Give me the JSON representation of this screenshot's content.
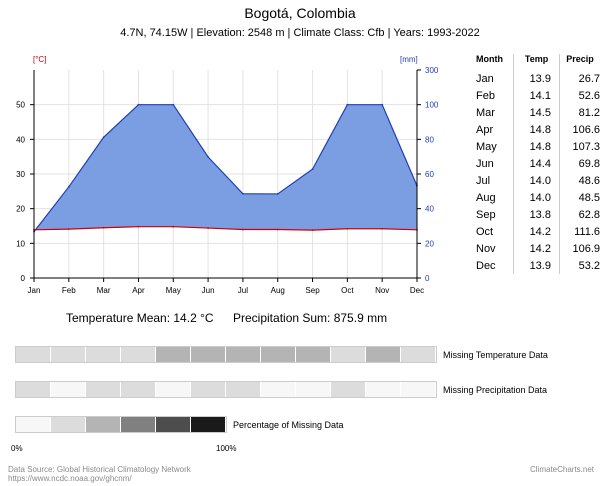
{
  "header": {
    "title": "Bogotá, Colombia",
    "subtitle": "4.7N, 74.15W | Elevation: 2548 m | Climate Class: Cfb | Years: 1993-2022"
  },
  "chart_data": {
    "type": "area",
    "categories": [
      "Jan",
      "Feb",
      "Mar",
      "Apr",
      "May",
      "Jun",
      "Jul",
      "Aug",
      "Sep",
      "Oct",
      "Nov",
      "Dec"
    ],
    "left_axis": {
      "unit_label": "[°C]",
      "ticks": [
        0,
        10,
        20,
        30,
        40,
        50
      ],
      "ylim": [
        0,
        60
      ],
      "color": "#cc0000"
    },
    "right_axis": {
      "unit_label": "[mm]",
      "ticks": [
        0,
        20,
        40,
        60,
        80,
        100,
        300
      ],
      "color": "#1f3fb0"
    },
    "series": [
      {
        "key": "temperature",
        "values": [
          13.9,
          14.1,
          14.5,
          14.8,
          14.8,
          14.4,
          14.0,
          14.0,
          13.8,
          14.2,
          14.2,
          13.9
        ],
        "color": "#cc0000"
      },
      {
        "key": "precipitation",
        "values": [
          26.7,
          52.6,
          81.2,
          106.6,
          107.3,
          69.8,
          48.6,
          48.5,
          62.8,
          111.6,
          106.9,
          53.2
        ],
        "color": "#1f3fb0",
        "fill": "#7b9ee3",
        "capped_above": 100
      }
    ],
    "grid": true
  },
  "stats": {
    "temperature_mean": "Temperature Mean: 14.2 °C",
    "precipitation_sum": "Precipitation Sum: 875.9 mm"
  },
  "monthly_table": {
    "headers": [
      "Month",
      "Temp",
      "Precip"
    ],
    "rows": [
      [
        "Jan",
        "13.9",
        "26.7"
      ],
      [
        "Feb",
        "14.1",
        "52.6"
      ],
      [
        "Mar",
        "14.5",
        "81.2"
      ],
      [
        "Apr",
        "14.8",
        "106.6"
      ],
      [
        "May",
        "14.8",
        "107.3"
      ],
      [
        "Jun",
        "14.4",
        "69.8"
      ],
      [
        "Jul",
        "14.0",
        "48.6"
      ],
      [
        "Aug",
        "14.0",
        "48.5"
      ],
      [
        "Sep",
        "13.8",
        "62.8"
      ],
      [
        "Oct",
        "14.2",
        "111.6"
      ],
      [
        "Nov",
        "14.2",
        "106.9"
      ],
      [
        "Dec",
        "13.9",
        "53.2"
      ]
    ]
  },
  "missing_data": {
    "temperature": {
      "label": "Missing Temperature Data",
      "colors": [
        "#dcdcdc",
        "#dcdcdc",
        "#dcdcdc",
        "#dcdcdc",
        "#b4b4b4",
        "#b4b4b4",
        "#b4b4b4",
        "#b4b4b4",
        "#b4b4b4",
        "#dcdcdc",
        "#b4b4b4",
        "#dcdcdc"
      ]
    },
    "precipitation": {
      "label": "Missing Precipitation Data",
      "colors": [
        "#dcdcdc",
        "#f7f7f7",
        "#dcdcdc",
        "#dcdcdc",
        "#f7f7f7",
        "#dcdcdc",
        "#dcdcdc",
        "#f7f7f7",
        "#f7f7f7",
        "#dcdcdc",
        "#f7f7f7",
        "#f7f7f7"
      ]
    },
    "legend": {
      "label": "Percentage of Missing Data",
      "colors": [
        "#f7f7f7",
        "#dcdcdc",
        "#b4b4b4",
        "#808080",
        "#4d4d4d",
        "#1a1a1a"
      ],
      "min_label": "0%",
      "max_label": "100%"
    }
  },
  "footer": {
    "source_line1": "Data Source: Global Historical Climatology Network",
    "source_line2": "https://www.ncdc.noaa.gov/ghcnm/",
    "brand": "ClimateCharts.net"
  }
}
